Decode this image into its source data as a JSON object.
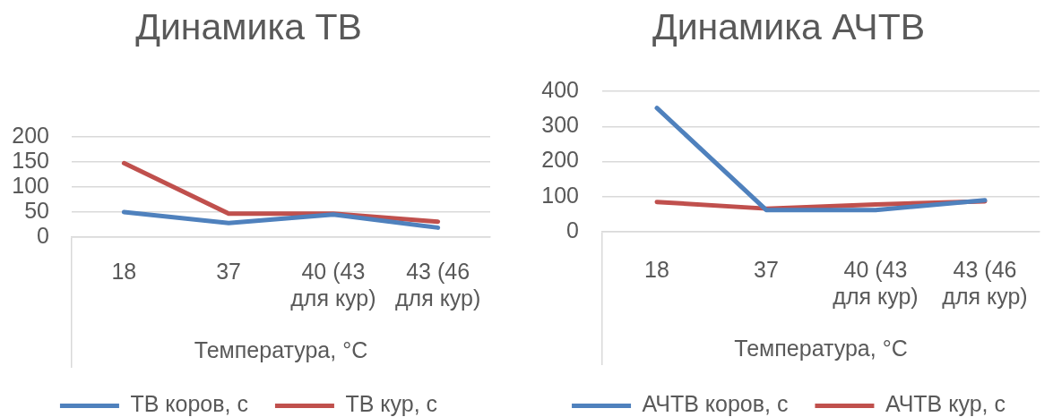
{
  "chart_data": [
    {
      "type": "line",
      "title": "Динамика ТВ",
      "xlabel": "Температура, °C",
      "categories": [
        "18",
        "37",
        "40 (43 для кур)",
        "43 (46 для кур)"
      ],
      "series": [
        {
          "name": "ТВ коров, с",
          "color": "#4f81bd",
          "values": [
            50,
            28,
            45,
            19
          ]
        },
        {
          "name": "ТВ кур, с",
          "color": "#c0504d",
          "values": [
            148,
            47,
            47,
            31
          ]
        }
      ],
      "ylim": [
        0,
        200
      ],
      "yticks": [
        0,
        50,
        100,
        150,
        200
      ],
      "grid": "y",
      "legend": "bottom",
      "marker": "none"
    },
    {
      "type": "line",
      "title": "Динамика АЧТВ",
      "xlabel": "Температура, °C",
      "categories": [
        "18",
        "37",
        "40 (43 для кур)",
        "43 (46 для кур)"
      ],
      "series": [
        {
          "name": "АЧТВ коров, с",
          "color": "#4f81bd",
          "values": [
            353,
            62,
            62,
            90
          ]
        },
        {
          "name": "АЧТВ кур, с",
          "color": "#c0504d",
          "values": [
            85,
            66,
            78,
            87
          ]
        }
      ],
      "ylim": [
        0,
        400
      ],
      "yticks": [
        0,
        100,
        200,
        300,
        400
      ],
      "grid": "y",
      "legend": "bottom",
      "marker": "none"
    }
  ]
}
